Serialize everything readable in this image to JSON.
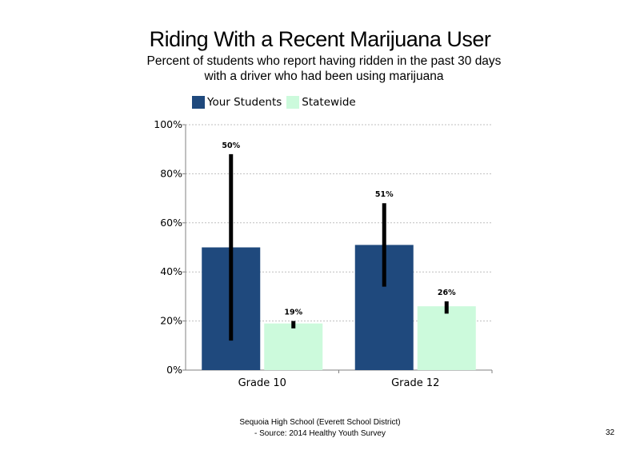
{
  "title": "Riding With a Recent Marijuana User",
  "subtitle": "Percent of students who report having ridden in the past 30 days with a driver who had been using marijuana",
  "footer": {
    "line1": "Sequoia High School (Everett School District)",
    "line2": "- Source: 2014 Healthy Youth Survey"
  },
  "page_number": "32",
  "colors": {
    "your_students": "#1f497d",
    "statewide": "#ccfadc",
    "error_bar": "#000000",
    "gridline": "#bfbfbf"
  },
  "chart_data": {
    "type": "bar",
    "categories": [
      "Grade 10",
      "Grade 12"
    ],
    "series": [
      {
        "name": "Your Students",
        "values": [
          50,
          51
        ],
        "labels": [
          "50%",
          "51%"
        ],
        "ci_low": [
          12,
          34
        ],
        "ci_high": [
          88,
          68
        ]
      },
      {
        "name": "Statewide",
        "values": [
          19,
          26
        ],
        "labels": [
          "19%",
          "26%"
        ],
        "ci_low": [
          17,
          23
        ],
        "ci_high": [
          20,
          28
        ]
      }
    ],
    "ylim": [
      0,
      100
    ],
    "yticks": [
      0,
      20,
      40,
      60,
      80,
      100
    ],
    "ytick_labels": [
      "0%",
      "20%",
      "40%",
      "60%",
      "80%",
      "100%"
    ],
    "grid": true,
    "legend_position": "top-left"
  }
}
